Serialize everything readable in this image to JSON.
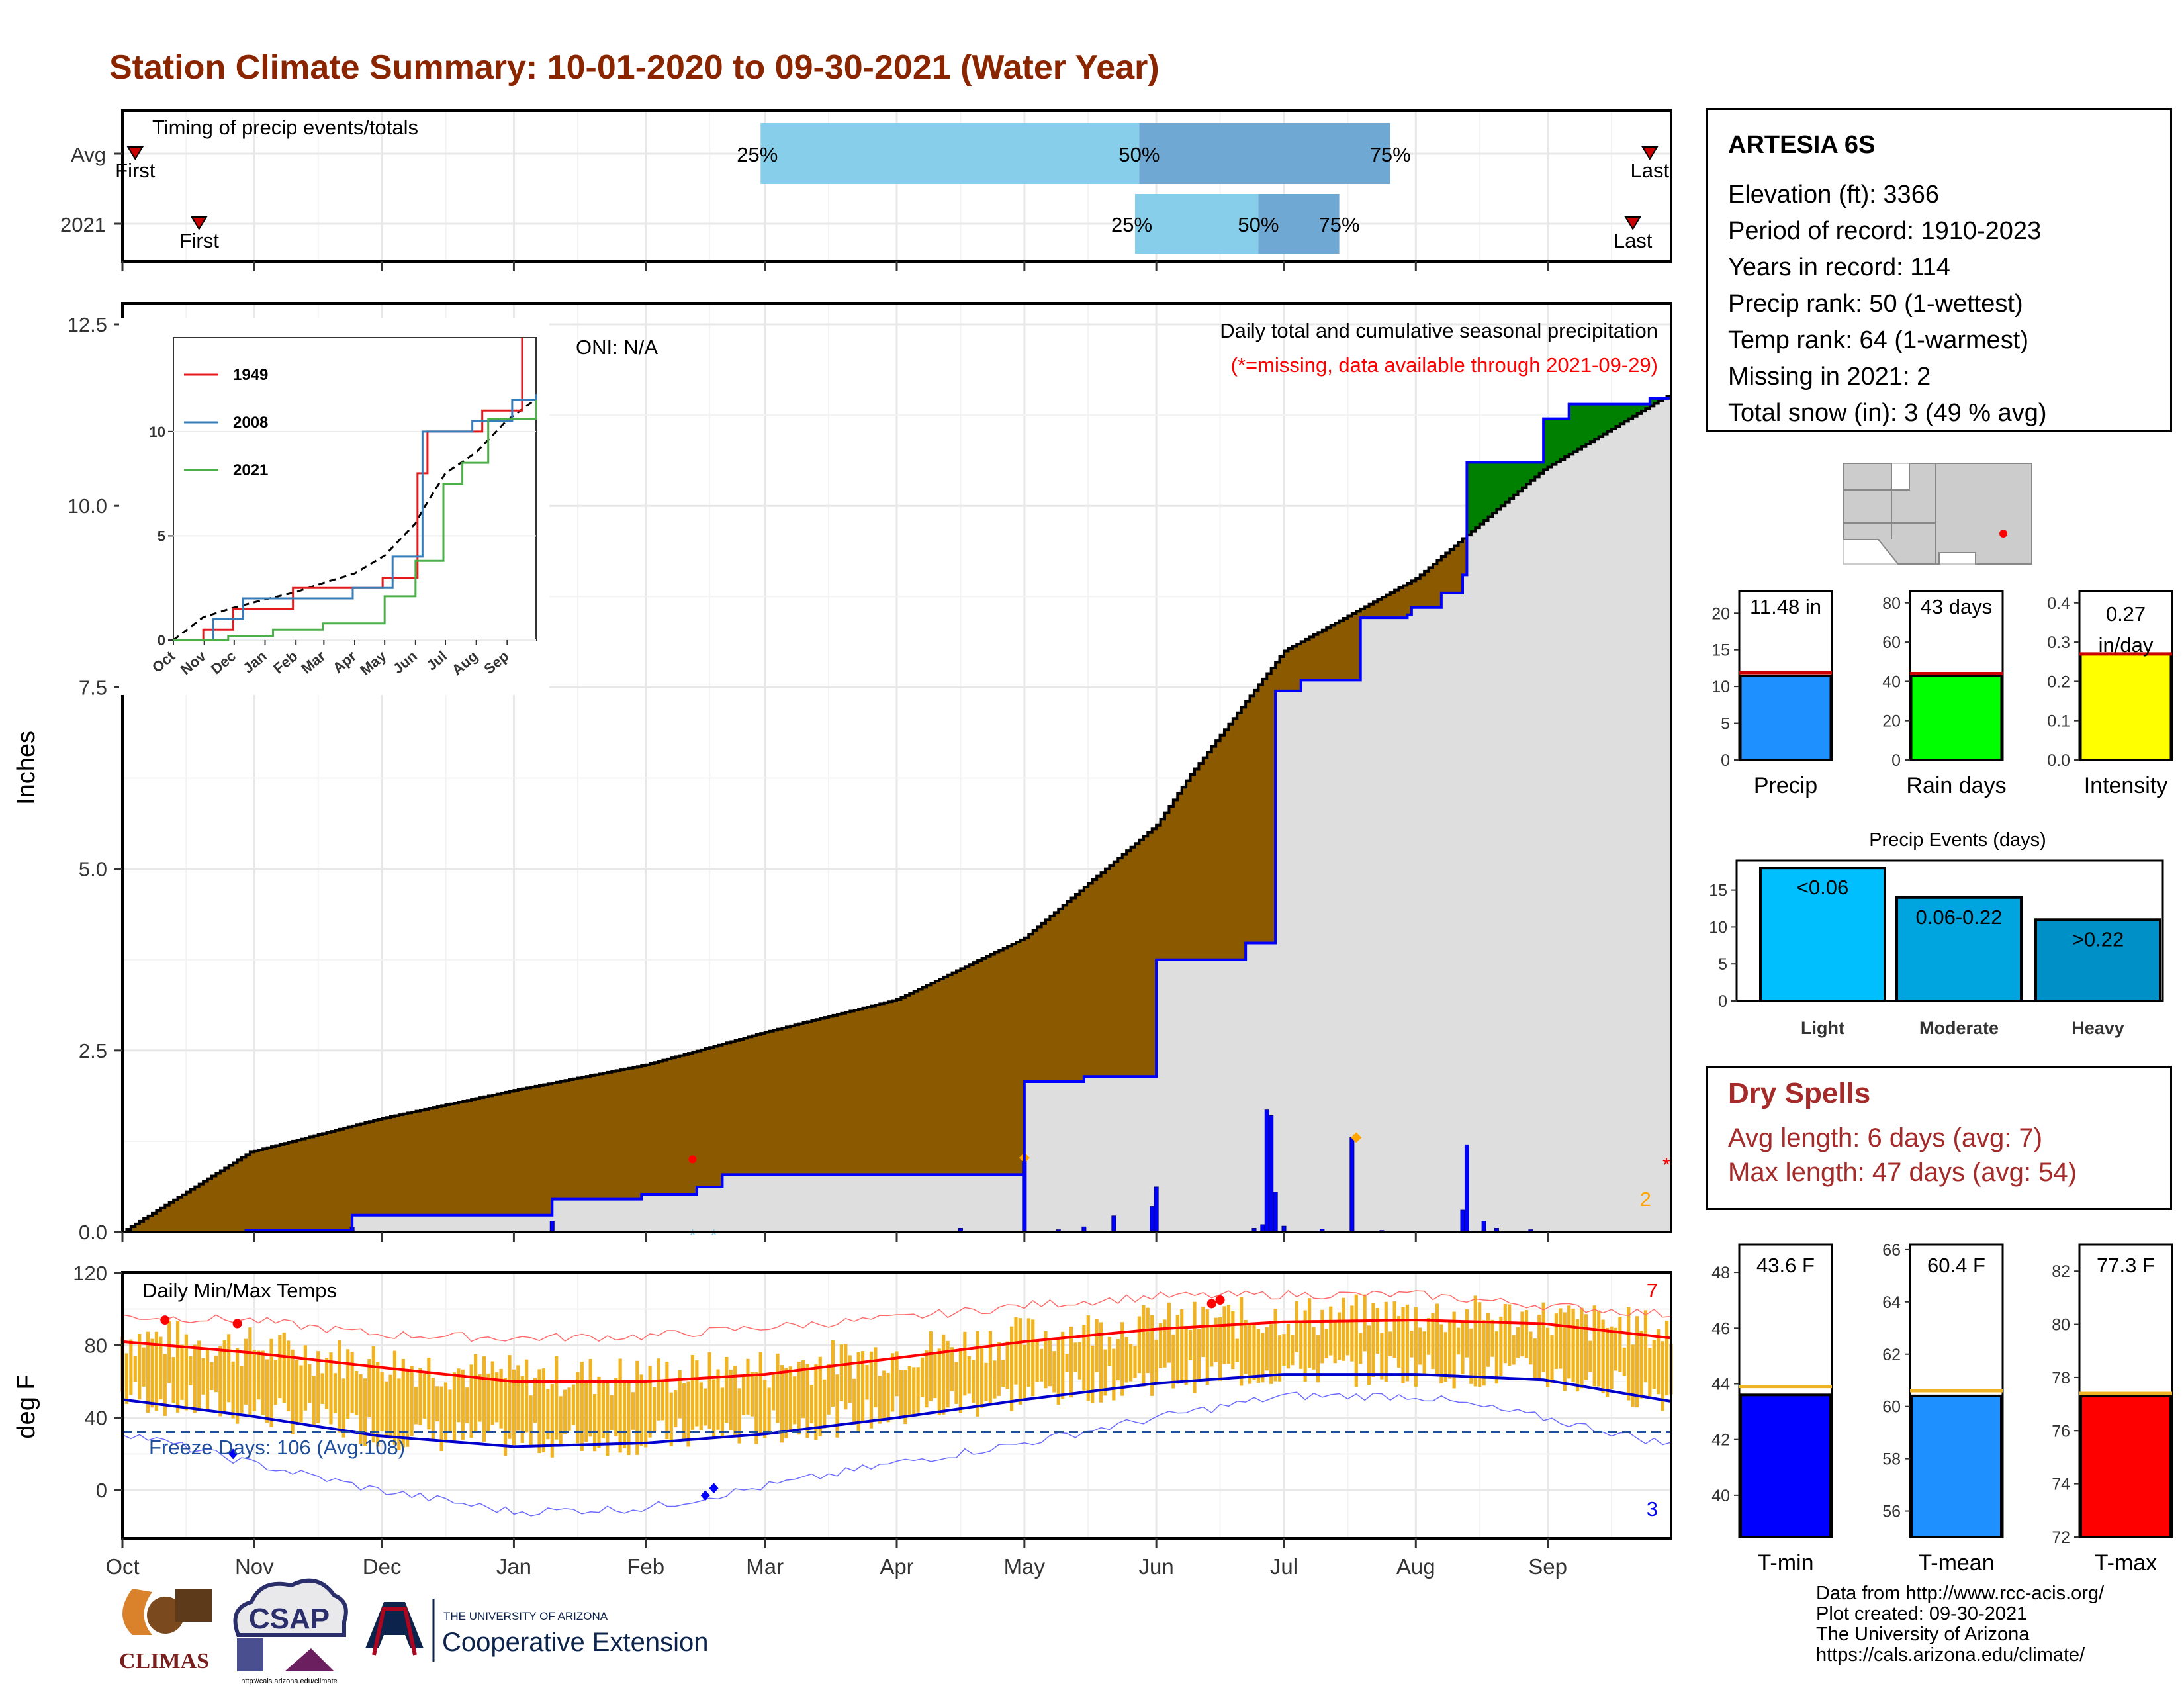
{
  "title": "Station Climate Summary: 10-01-2020 to 09-30-2021 (Water Year)",
  "months": [
    "Oct",
    "Nov",
    "Dec",
    "Jan",
    "Feb",
    "Mar",
    "Apr",
    "May",
    "Jun",
    "Jul",
    "Aug",
    "Sep"
  ],
  "timing": {
    "label": "Timing of precip events/totals",
    "rows": [
      {
        "name": "Avg",
        "first_label": "First",
        "first_day": 3,
        "last_label": "Last",
        "last_day": 359,
        "q25_label": "25%",
        "q25_day": 150,
        "q50_label": "50%",
        "q50_day": 239,
        "q75_label": "75%",
        "q75_day": 298
      },
      {
        "name": "2021",
        "first_label": "First",
        "first_day": 18,
        "last_label": "Last",
        "last_day": 355,
        "q25_label": "25%",
        "q25_day": 238,
        "q50_label": "50%",
        "q50_day": 267,
        "q75_label": "75%",
        "q75_day": 286
      }
    ]
  },
  "precip_panel": {
    "ylabel": "Inches",
    "yticks": [
      "0.0",
      "2.5",
      "5.0",
      "7.5",
      "10.0",
      "12.5"
    ],
    "oni": "ONI: N/A",
    "label_main": "Daily total and cumulative seasonal precipitation",
    "label_missing": "(*=missing, data available through 2021-09-29)",
    "missing_count": "2",
    "missing_mark": "*"
  },
  "inset": {
    "yticks": [
      "0",
      "5",
      "10"
    ],
    "xticks": [
      "Oct",
      "Nov",
      "Dec",
      "Jan",
      "Feb",
      "Mar",
      "Apr",
      "May",
      "Jun",
      "Jul",
      "Aug",
      "Sep"
    ],
    "legend": [
      {
        "name": "1949",
        "color": "#e41a1c"
      },
      {
        "name": "2008",
        "color": "#377eb8"
      },
      {
        "name": "2021",
        "color": "#4daf4a"
      }
    ]
  },
  "temp_panel": {
    "ylabel": "deg F",
    "label": "Daily Min/Max Temps",
    "yticks": [
      "0",
      "40",
      "80",
      "120"
    ],
    "freeze_label": "Freeze Days: 106 (Avg:108)",
    "record_high_count": "7",
    "record_low_count": "3"
  },
  "station": {
    "name": "ARTESIA 6S",
    "rows": [
      "Elevation (ft): 3366",
      "Period of record: 1910-2023",
      "Years in record: 114",
      "Precip rank: 50 (1-wettest)",
      "Temp rank: 64 (1-warmest)",
      "Missing in 2021: 2",
      "Total snow (in): 3 (49 % avg)"
    ]
  },
  "dry_spells": {
    "title": "Dry Spells",
    "avg": "Avg length: 6 days (avg: 7)",
    "max": "Max length: 47 days (avg: 54)"
  },
  "summary_bars": [
    {
      "label": "Precip",
      "value_label": "11.48 in",
      "value": 11.48,
      "avg": 11.9,
      "ymax": 23,
      "ticks": [
        "0",
        "5",
        "10",
        "15",
        "20"
      ],
      "tick_vals": [
        0,
        5,
        10,
        15,
        20
      ],
      "color": "#1e90ff"
    },
    {
      "label": "Rain days",
      "value_label": "43 days",
      "value": 43,
      "avg": 44,
      "ymax": 86,
      "ticks": [
        "0",
        "20",
        "40",
        "60",
        "80"
      ],
      "tick_vals": [
        0,
        20,
        40,
        60,
        80
      ],
      "color": "#00ff00"
    },
    {
      "label": "Intensity",
      "value_label": "0.27 in/day",
      "value": 0.27,
      "avg": 0.27,
      "ymax": 0.43,
      "ticks": [
        "0.0",
        "0.1",
        "0.2",
        "0.3",
        "0.4"
      ],
      "tick_vals": [
        0,
        0.1,
        0.2,
        0.3,
        0.4
      ],
      "color": "#ffff00"
    }
  ],
  "precip_events": {
    "title": "Precip Events (days)",
    "ticks": [
      "0",
      "5",
      "10",
      "15"
    ],
    "bars": [
      {
        "label": "Light",
        "value": 18,
        "inner": "<0.06",
        "color": "#00bfff"
      },
      {
        "label": "Moderate",
        "value": 14,
        "inner": "0.06-0.22",
        "color": "#00a5e0"
      },
      {
        "label": "Heavy",
        "value": 11,
        "inner": ">0.22",
        "color": "#0090c8"
      }
    ]
  },
  "temp_bars": [
    {
      "label": "T-min",
      "value_label": "43.6 F",
      "value": 43.6,
      "avg": 43.9,
      "ymin": 38.5,
      "ymax": 49,
      "ticks": [
        "40",
        "42",
        "44",
        "46",
        "48"
      ],
      "tick_vals": [
        40,
        42,
        44,
        46,
        48
      ],
      "color": "#0000ff"
    },
    {
      "label": "T-mean",
      "value_label": "60.4 F",
      "value": 60.4,
      "avg": 60.6,
      "ymin": 55,
      "ymax": 66.2,
      "ticks": [
        "56",
        "58",
        "60",
        "62",
        "64",
        "66"
      ],
      "tick_vals": [
        56,
        58,
        60,
        62,
        64,
        66
      ],
      "color": "#1e90ff"
    },
    {
      "label": "T-max",
      "value_label": "77.3 F",
      "value": 77.3,
      "avg": 77.4,
      "ymin": 72,
      "ymax": 83,
      "ticks": [
        "72",
        "74",
        "76",
        "78",
        "80",
        "82"
      ],
      "tick_vals": [
        72,
        74,
        76,
        78,
        80,
        82
      ],
      "color": "#ff0000"
    }
  ],
  "logos": {
    "climas": "CLIMAS",
    "csap": "CSAP",
    "csap_url": "http://cals.arizona.edu/climate",
    "ua_top": "THE UNIVERSITY OF ARIZONA",
    "ua_main": "Cooperative Extension"
  },
  "credits": [
    "Data from http://www.rcc-acis.org/",
    "Plot created: 09-30-2021",
    "The University of Arizona",
    "https://cals.arizona.edu/climate/"
  ],
  "chart_data": [
    {
      "type": "area",
      "title": "Daily total and cumulative seasonal precipitation",
      "ylabel": "Inches",
      "ylim": [
        0,
        12.5
      ],
      "x_units": "day of water year (0 = Oct 1)",
      "avg_cumulative": [
        [
          0,
          0
        ],
        [
          30,
          1.1
        ],
        [
          60,
          1.55
        ],
        [
          92,
          1.95
        ],
        [
          123,
          2.3
        ],
        [
          151,
          2.75
        ],
        [
          182,
          3.2
        ],
        [
          212,
          4.05
        ],
        [
          243,
          5.6
        ],
        [
          251,
          6.3
        ],
        [
          273,
          8.0
        ],
        [
          304,
          9.0
        ],
        [
          334,
          10.5
        ],
        [
          364,
          11.55
        ]
      ],
      "obs_cumulative": [
        [
          0,
          0
        ],
        [
          29,
          0.02
        ],
        [
          53,
          0.02
        ],
        [
          54,
          0.23
        ],
        [
          100,
          0.23
        ],
        [
          101,
          0.45
        ],
        [
          121,
          0.45
        ],
        [
          122,
          0.52
        ],
        [
          135,
          0.62
        ],
        [
          140,
          0.62
        ],
        [
          141,
          0.79
        ],
        [
          211,
          0.79
        ],
        [
          212,
          1.02
        ],
        [
          211,
          0.79
        ],
        [
          212,
          2.07
        ],
        [
          225,
          2.07
        ],
        [
          226,
          2.14
        ],
        [
          242,
          2.14
        ],
        [
          243,
          3.75
        ],
        [
          263,
          3.75
        ],
        [
          264,
          3.98
        ],
        [
          270,
          3.98
        ],
        [
          271,
          5.48
        ],
        [
          271,
          7.45
        ],
        [
          277,
          7.6
        ],
        [
          290,
          7.6
        ],
        [
          291,
          8.46
        ],
        [
          302,
          8.5
        ],
        [
          303,
          8.6
        ],
        [
          310,
          8.8
        ],
        [
          315,
          9.05
        ],
        [
          316,
          10.6
        ],
        [
          334,
          11.2
        ],
        [
          340,
          11.4
        ],
        [
          359,
          11.48
        ]
      ],
      "daily_precip": [
        [
          54,
          0.06
        ],
        [
          101,
          0.15
        ],
        [
          197,
          0.05
        ],
        [
          212,
          1.02
        ],
        [
          220,
          0.03
        ],
        [
          226,
          0.07
        ],
        [
          233,
          0.22
        ],
        [
          242,
          0.35
        ],
        [
          243,
          0.62
        ],
        [
          266,
          0.05
        ],
        [
          268,
          0.1
        ],
        [
          269,
          1.68
        ],
        [
          270,
          1.6
        ],
        [
          271,
          0.55
        ],
        [
          273,
          0.08
        ],
        [
          282,
          0.04
        ],
        [
          289,
          1.3
        ],
        [
          296,
          0.02
        ],
        [
          315,
          0.3
        ],
        [
          316,
          1.2
        ],
        [
          320,
          0.15
        ],
        [
          323,
          0.05
        ],
        [
          331,
          0.03
        ]
      ],
      "oni": "N/A"
    },
    {
      "type": "line",
      "title": "Inset cumulative precipitation",
      "series": [
        {
          "name": "1949",
          "values": [
            [
              0,
              0
            ],
            [
              30,
              0.5
            ],
            [
              60,
              1.5
            ],
            [
              120,
              2.5
            ],
            [
              210,
              3
            ],
            [
              245,
              8
            ],
            [
              255,
              10
            ],
            [
              310,
              11
            ],
            [
              350,
              15
            ]
          ]
        },
        {
          "name": "2008",
          "values": [
            [
              0,
              0
            ],
            [
              40,
              1
            ],
            [
              70,
              2
            ],
            [
              180,
              2.5
            ],
            [
              220,
              4
            ],
            [
              250,
              10
            ],
            [
              300,
              10.5
            ],
            [
              340,
              11.5
            ],
            [
              364,
              11.8
            ]
          ]
        },
        {
          "name": "2021",
          "values": [
            [
              0,
              0
            ],
            [
              55,
              0.2
            ],
            [
              100,
              0.5
            ],
            [
              150,
              0.8
            ],
            [
              212,
              2.1
            ],
            [
              243,
              3.8
            ],
            [
              271,
              7.5
            ],
            [
              290,
              8.5
            ],
            [
              316,
              10.6
            ],
            [
              364,
              11.5
            ]
          ]
        }
      ],
      "ylim": [
        0,
        12.5
      ]
    },
    {
      "type": "line",
      "title": "Daily Min/Max Temps",
      "ylabel": "deg F",
      "ylim": [
        -20,
        125
      ],
      "series": [
        {
          "name": "avg max",
          "values": [
            [
              0,
              82
            ],
            [
              30,
              76
            ],
            [
              60,
              68
            ],
            [
              92,
              60
            ],
            [
              123,
              60
            ],
            [
              151,
              64
            ],
            [
              182,
              73
            ],
            [
              212,
              82
            ],
            [
              243,
              89
            ],
            [
              273,
              93
            ],
            [
              304,
              94
            ],
            [
              334,
              92
            ],
            [
              364,
              84
            ]
          ]
        },
        {
          "name": "avg min",
          "values": [
            [
              0,
              50
            ],
            [
              30,
              41
            ],
            [
              60,
              30
            ],
            [
              92,
              24
            ],
            [
              123,
              26
            ],
            [
              151,
              31
            ],
            [
              182,
              40
            ],
            [
              212,
              50
            ],
            [
              243,
              59
            ],
            [
              273,
              64
            ],
            [
              304,
              64
            ],
            [
              334,
              61
            ],
            [
              364,
              49
            ]
          ]
        },
        {
          "name": "record max",
          "values": [
            [
              0,
              96
            ],
            [
              30,
              94
            ],
            [
              60,
              86
            ],
            [
              92,
              84
            ],
            [
              123,
              85
            ],
            [
              151,
              90
            ],
            [
              182,
              95
            ],
            [
              212,
              102
            ],
            [
              243,
              107
            ],
            [
              273,
              108
            ],
            [
              304,
              108
            ],
            [
              334,
              102
            ],
            [
              364,
              97
            ]
          ]
        },
        {
          "name": "record min",
          "values": [
            [
              0,
              32
            ],
            [
              30,
              15
            ],
            [
              60,
              0
            ],
            [
              92,
              -12
            ],
            [
              123,
              -10
            ],
            [
              151,
              2
            ],
            [
              182,
              15
            ],
            [
              212,
              26
            ],
            [
              243,
              40
            ],
            [
              273,
              52
            ],
            [
              304,
              52
            ],
            [
              334,
              40
            ],
            [
              364,
              25
            ]
          ]
        }
      ],
      "freeze_line": 32,
      "freeze_days": 106,
      "freeze_days_avg": 108
    }
  ]
}
